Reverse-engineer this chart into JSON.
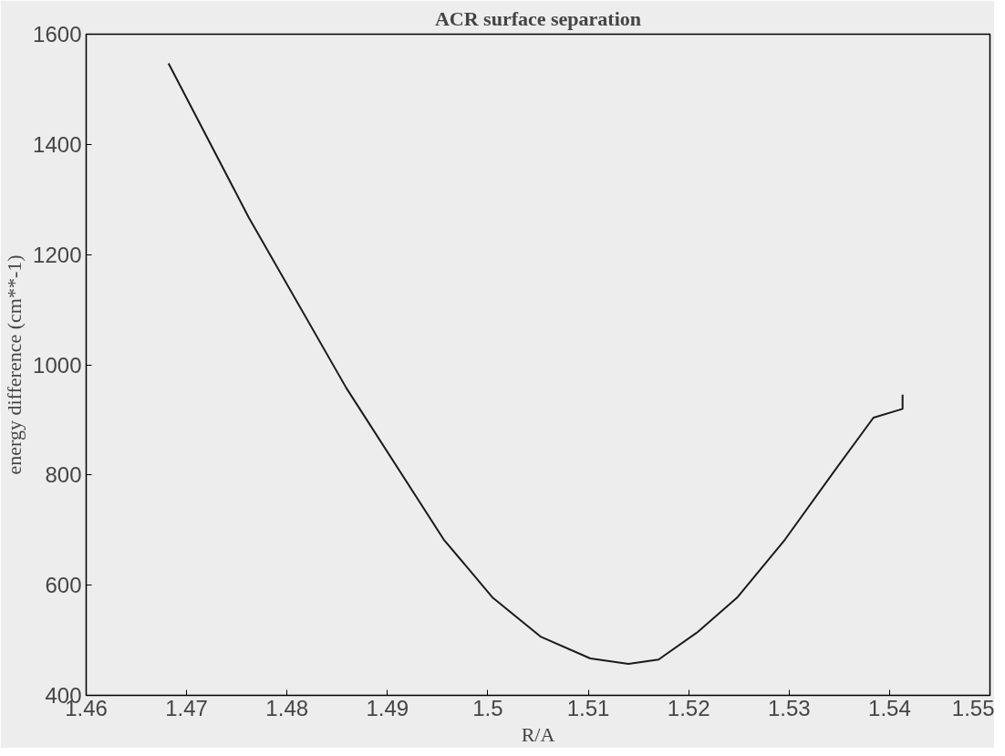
{
  "chart_data": {
    "type": "line",
    "title": "ACR surface separation",
    "xlabel": "R/A",
    "ylabel": "energy difference (cm**-1)",
    "x": [
      1.4682,
      1.4762,
      1.4859,
      1.4956,
      1.5005,
      1.5053,
      1.5102,
      1.514,
      1.517,
      1.5209,
      1.5248,
      1.5296,
      1.5345,
      1.5384,
      1.5413,
      1.5413
    ],
    "series": [
      {
        "color": "#1a1a1a",
        "values": [
          1547,
          1267,
          958,
          683,
          577,
          506,
          467,
          457,
          465,
          515,
          577,
          683,
          807,
          904,
          920,
          946
        ]
      }
    ],
    "xlim": [
      1.46,
      1.55
    ],
    "xticks": [
      1.46,
      1.47,
      1.48,
      1.49,
      1.5,
      1.51,
      1.52,
      1.53,
      1.54,
      1.55
    ],
    "ylim": [
      400,
      1600
    ],
    "yticks": [
      400,
      600,
      800,
      1000,
      1200,
      1400,
      1600
    ],
    "grid": false,
    "marker": "none",
    "line_style": "solid"
  }
}
